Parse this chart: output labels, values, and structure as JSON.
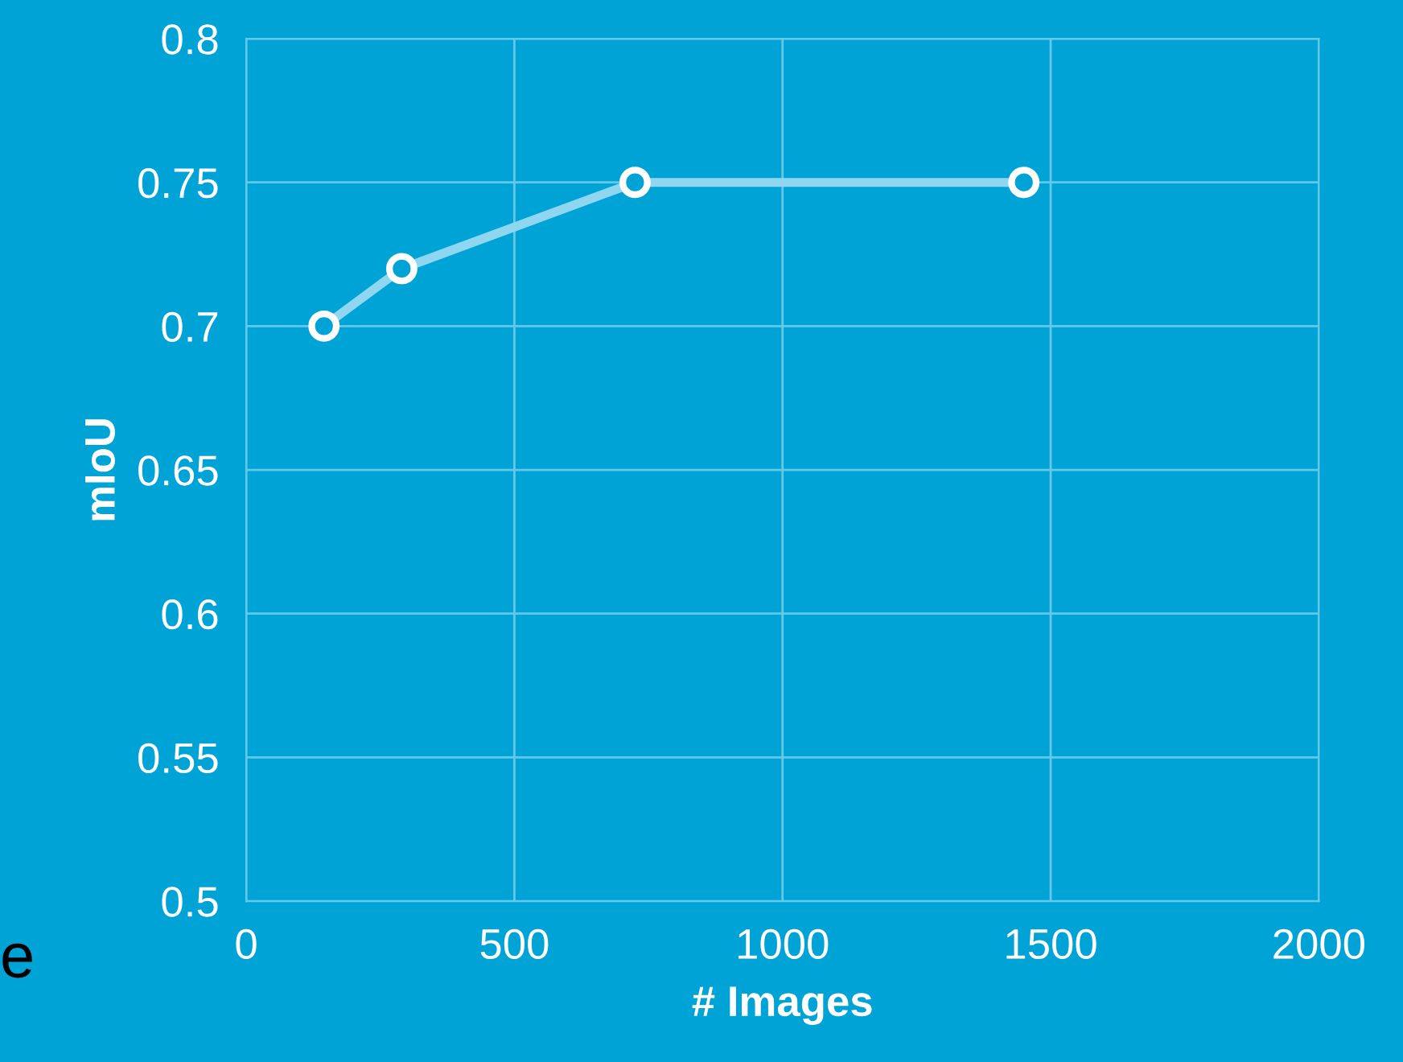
{
  "chart_data": {
    "type": "line",
    "xlabel": "# Images",
    "ylabel": "mIoU",
    "x": [
      145,
      290,
      725,
      1450
    ],
    "series": [
      {
        "color": "#8fd6f0",
        "values": [
          0.7,
          0.72,
          0.75,
          0.75
        ]
      }
    ],
    "xlim": [
      0,
      2000
    ],
    "xticks": [
      0,
      500,
      1000,
      1500,
      2000
    ],
    "ylim": [
      0.5,
      0.8
    ],
    "yticks": [
      0.5,
      0.55,
      0.6,
      0.65,
      0.7,
      0.75,
      0.8
    ],
    "grid": true,
    "marker": "circle",
    "line_style": "solid",
    "annotations": [
      "e"
    ]
  }
}
